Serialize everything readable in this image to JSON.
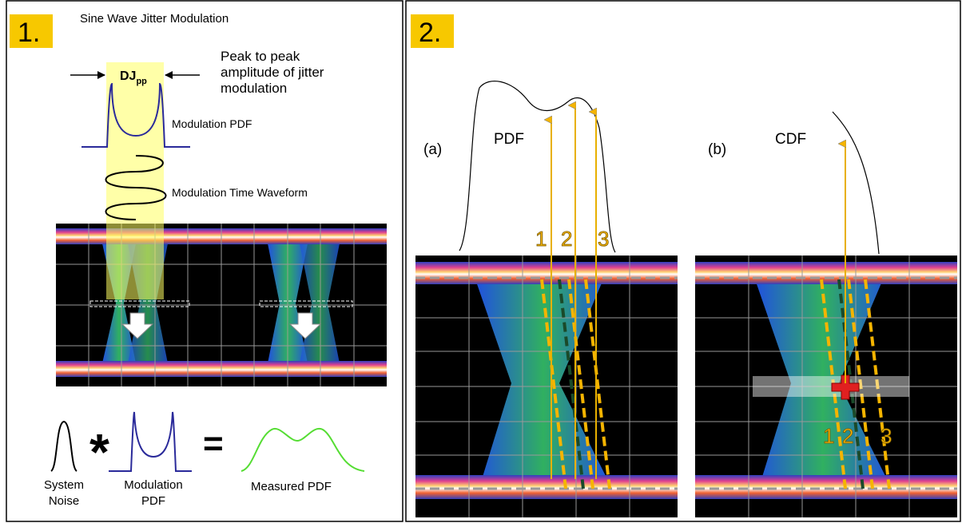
{
  "panel1": {
    "number": "1.",
    "title": "Sine Wave Jitter Modulation",
    "dj_label": "DJ",
    "dj_subscript": "pp",
    "amplitude_note": [
      "Peak to peak",
      "amplitude of jitter",
      "modulation"
    ],
    "modulation_pdf_label": "Modulation PDF",
    "waveform_label": "Modulation Time Waveform",
    "equation": {
      "system_noise": [
        "System",
        "Noise"
      ],
      "convolve": "*",
      "modulation_pdf": [
        "Modulation",
        "PDF"
      ],
      "equals": "=",
      "measured_pdf": "Measured PDF"
    }
  },
  "panel2": {
    "number": "2.",
    "a": {
      "label": "(a)",
      "curve": "PDF",
      "lines": [
        "1",
        "2",
        "3"
      ]
    },
    "b": {
      "label": "(b)",
      "curve": "CDF",
      "lines": [
        "1",
        "2",
        "3"
      ]
    }
  }
}
